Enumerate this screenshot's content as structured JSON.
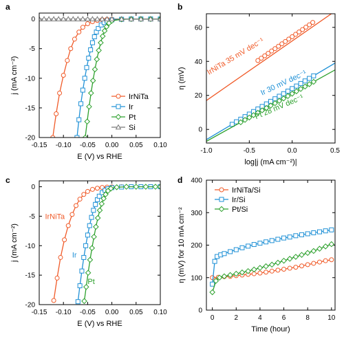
{
  "colors": {
    "irnita": "#f05a28",
    "ir": "#1e90d6",
    "pt": "#2ca02c",
    "si": "#777777",
    "axis": "#000000"
  },
  "chart_data": [
    {
      "id": "a",
      "panel_label": "a",
      "type": "line",
      "xlabel": "E (V) vs RHE",
      "ylabel": "j (mA cm⁻²)",
      "xlim": [
        -0.15,
        0.1
      ],
      "ylim": [
        -20,
        1
      ],
      "xticks": [
        -0.15,
        -0.1,
        -0.05,
        0.0,
        0.05,
        0.1
      ],
      "yticks": [
        0,
        -5,
        -10,
        -15,
        -20
      ],
      "xtick_labels": [
        "-0.15",
        "-0.10",
        "-0.05",
        "0.00",
        "0.05",
        "0.10"
      ],
      "ytick_labels": [
        "0",
        "-5",
        "-10",
        "-15",
        "-20"
      ],
      "legend": "bottom-right",
      "series": [
        {
          "name": "IrNiTa",
          "color_key": "irnita",
          "marker": "circle",
          "x": [
            -0.122,
            -0.115,
            -0.108,
            -0.1,
            -0.092,
            -0.085,
            -0.077,
            -0.068,
            -0.06,
            -0.05,
            -0.04,
            -0.03,
            -0.02,
            -0.01,
            0.0,
            0.02,
            0.04,
            0.06,
            0.08,
            0.1
          ],
          "y": [
            -20.0,
            -16.0,
            -12.5,
            -9.5,
            -7.0,
            -5.0,
            -3.4,
            -2.2,
            -1.4,
            -0.8,
            -0.45,
            -0.25,
            -0.12,
            -0.06,
            -0.03,
            -0.01,
            0.0,
            0.0,
            0.0,
            0.0
          ]
        },
        {
          "name": "Ir",
          "color_key": "ir",
          "marker": "square",
          "x": [
            -0.072,
            -0.068,
            -0.064,
            -0.06,
            -0.056,
            -0.052,
            -0.048,
            -0.044,
            -0.04,
            -0.036,
            -0.032,
            -0.028,
            -0.022,
            -0.016,
            -0.01,
            0.0,
            0.02,
            0.04,
            0.06,
            0.08,
            0.1
          ],
          "y": [
            -20.0,
            -17.0,
            -14.3,
            -12.0,
            -10.0,
            -8.2,
            -6.6,
            -5.2,
            -4.0,
            -3.0,
            -2.2,
            -1.6,
            -1.0,
            -0.6,
            -0.35,
            -0.15,
            -0.05,
            0.0,
            0.0,
            0.0,
            0.0
          ]
        },
        {
          "name": "Pt",
          "color_key": "pt",
          "marker": "diamond",
          "x": [
            -0.055,
            -0.051,
            -0.047,
            -0.043,
            -0.039,
            -0.035,
            -0.031,
            -0.027,
            -0.023,
            -0.019,
            -0.015,
            -0.011,
            -0.006,
            0.0,
            0.02,
            0.04,
            0.06,
            0.08,
            0.1
          ],
          "y": [
            -20.0,
            -17.3,
            -14.8,
            -12.5,
            -10.4,
            -8.5,
            -6.8,
            -5.3,
            -4.0,
            -2.9,
            -2.0,
            -1.3,
            -0.7,
            -0.3,
            -0.05,
            0.0,
            0.0,
            0.0,
            0.0
          ]
        },
        {
          "name": "Si",
          "color_key": "si",
          "marker": "triangle",
          "x": [
            -0.15,
            -0.14,
            -0.13,
            -0.12,
            -0.11,
            -0.1,
            -0.09,
            -0.08,
            -0.07,
            -0.06,
            -0.05,
            -0.04,
            -0.03,
            -0.02,
            -0.01,
            0.0,
            0.02,
            0.04,
            0.06,
            0.08,
            0.1
          ],
          "y": [
            0,
            0,
            0,
            0,
            0,
            0,
            0,
            0,
            0,
            0,
            0,
            0,
            0,
            0,
            0,
            0,
            0,
            0,
            0,
            0,
            0
          ]
        }
      ]
    },
    {
      "id": "b",
      "panel_label": "b",
      "type": "scatter",
      "xlabel": "log|j (mA cm⁻²)|",
      "ylabel": "η (mV)",
      "xlim": [
        -1.0,
        0.5
      ],
      "ylim": [
        -8,
        68
      ],
      "xticks": [
        -1.0,
        -0.5,
        0.0,
        0.5
      ],
      "yticks": [
        0,
        20,
        40,
        60
      ],
      "xtick_labels": [
        "-1.0",
        "-0.5",
        "0.0",
        "0.5"
      ],
      "ytick_labels": [
        "0",
        "20",
        "40",
        "60"
      ],
      "annotations": [
        {
          "text": "IrNiTa   35 mV dec⁻¹",
          "color_key": "irnita",
          "x": -0.97,
          "y": 32,
          "rotate": -31
        },
        {
          "text": "Ir   30 mV dec⁻¹",
          "color_key": "ir",
          "x": -0.35,
          "y": 20,
          "rotate": -25
        },
        {
          "text": "Pt   28 mV dec⁻¹",
          "color_key": "pt",
          "x": -0.42,
          "y": 6,
          "rotate": -23
        }
      ],
      "series": [
        {
          "name": "IrNiTa",
          "color_key": "irnita",
          "marker": "circle",
          "x": [
            -0.4,
            -0.36,
            -0.32,
            -0.28,
            -0.24,
            -0.2,
            -0.16,
            -0.12,
            -0.08,
            -0.04,
            0.0,
            0.04,
            0.08,
            0.12,
            0.16,
            0.2,
            0.24
          ],
          "y": [
            40.5,
            41.9,
            43.3,
            44.7,
            46.1,
            47.5,
            48.9,
            50.3,
            51.7,
            53.1,
            54.5,
            55.9,
            57.3,
            58.7,
            60.1,
            61.5,
            62.9
          ],
          "fit": {
            "x": [
              -1.0,
              0.5
            ],
            "y": [
              17.0,
              69.5
            ]
          }
        },
        {
          "name": "Ir",
          "color_key": "ir",
          "marker": "square",
          "x": [
            -0.7,
            -0.65,
            -0.6,
            -0.55,
            -0.5,
            -0.45,
            -0.4,
            -0.35,
            -0.3,
            -0.25,
            -0.2,
            -0.15,
            -0.1,
            -0.05,
            0.0,
            0.05,
            0.1,
            0.15,
            0.2,
            0.25
          ],
          "y": [
            3.0,
            4.5,
            6.0,
            7.5,
            9.0,
            10.5,
            12.0,
            13.5,
            15.0,
            16.5,
            18.0,
            19.5,
            21.0,
            22.5,
            24.0,
            25.5,
            27.0,
            28.5,
            30.0,
            31.5
          ],
          "fit": {
            "x": [
              -1.0,
              0.5
            ],
            "y": [
              -6.0,
              39.0
            ]
          }
        },
        {
          "name": "Pt",
          "color_key": "pt",
          "marker": "diamond",
          "x": [
            -0.6,
            -0.55,
            -0.5,
            -0.45,
            -0.4,
            -0.35,
            -0.3,
            -0.25,
            -0.2,
            -0.15,
            -0.1,
            -0.05,
            0.0,
            0.05,
            0.1,
            0.15,
            0.2,
            0.25
          ],
          "y": [
            4.2,
            5.6,
            7.0,
            8.4,
            9.8,
            11.2,
            12.6,
            14.0,
            15.4,
            16.8,
            18.2,
            19.6,
            21.0,
            22.4,
            23.8,
            25.2,
            26.6,
            28.0
          ],
          "fit": {
            "x": [
              -1.0,
              0.5
            ],
            "y": [
              -7.0,
              35.0
            ]
          }
        }
      ]
    },
    {
      "id": "c",
      "panel_label": "c",
      "type": "line",
      "xlabel": "E (V) vs RHE",
      "ylabel": "j (mA cm⁻²)",
      "xlim": [
        -0.15,
        0.1
      ],
      "ylim": [
        -20,
        1
      ],
      "xticks": [
        -0.15,
        -0.1,
        -0.05,
        0.0,
        0.05,
        0.1
      ],
      "yticks": [
        0,
        -5,
        -10,
        -15,
        -20
      ],
      "xtick_labels": [
        "-0.15",
        "-0.10",
        "-0.05",
        "0.00",
        "0.05",
        "0.10"
      ],
      "ytick_labels": [
        "0",
        "-5",
        "-10",
        "-15",
        "-20"
      ],
      "annotations": [
        {
          "text": "IrNiTa",
          "color_key": "irnita",
          "x": -0.138,
          "y": -5.5
        },
        {
          "text": "Ir",
          "color_key": "ir",
          "x": -0.082,
          "y": -12.0
        },
        {
          "text": "Pt",
          "color_key": "pt",
          "x": -0.05,
          "y": -16.5
        }
      ],
      "series": [
        {
          "name": "IrNiTa",
          "color_key": "irnita",
          "marker": "circle",
          "x": [
            -0.12,
            -0.113,
            -0.106,
            -0.098,
            -0.09,
            -0.082,
            -0.074,
            -0.066,
            -0.058,
            -0.05,
            -0.04,
            -0.03,
            -0.02,
            -0.01,
            0.0,
            0.02,
            0.04,
            0.06,
            0.08,
            0.1
          ],
          "y": [
            -19.3,
            -15.5,
            -12.0,
            -9.0,
            -6.6,
            -4.7,
            -3.2,
            -2.1,
            -1.3,
            -0.8,
            -0.45,
            -0.25,
            -0.12,
            -0.06,
            -0.03,
            -0.01,
            0.0,
            0.0,
            0.0,
            0.0
          ]
        },
        {
          "name": "Ir",
          "color_key": "ir",
          "marker": "square",
          "x": [
            -0.07,
            -0.066,
            -0.062,
            -0.058,
            -0.054,
            -0.05,
            -0.046,
            -0.042,
            -0.038,
            -0.034,
            -0.03,
            -0.026,
            -0.02,
            -0.014,
            -0.008,
            0.0,
            0.02,
            0.04,
            0.06,
            0.08,
            0.1
          ],
          "y": [
            -19.5,
            -16.8,
            -14.3,
            -12.0,
            -10.0,
            -8.2,
            -6.6,
            -5.2,
            -4.0,
            -3.0,
            -2.2,
            -1.6,
            -1.0,
            -0.6,
            -0.35,
            -0.15,
            -0.05,
            0.0,
            0.0,
            0.0,
            0.0
          ]
        },
        {
          "name": "Pt",
          "color_key": "pt",
          "marker": "diamond",
          "x": [
            -0.057,
            -0.053,
            -0.049,
            -0.045,
            -0.041,
            -0.037,
            -0.033,
            -0.029,
            -0.025,
            -0.021,
            -0.017,
            -0.013,
            -0.008,
            -0.002,
            0.01,
            0.03,
            0.05,
            0.07,
            0.09,
            0.1
          ],
          "y": [
            -19.4,
            -17.0,
            -14.6,
            -12.4,
            -10.4,
            -8.5,
            -6.8,
            -5.3,
            -4.0,
            -2.9,
            -2.0,
            -1.3,
            -0.7,
            -0.3,
            -0.08,
            0.0,
            0.0,
            0.0,
            0.0,
            0.0
          ]
        }
      ]
    },
    {
      "id": "d",
      "panel_label": "d",
      "type": "line",
      "xlabel": "Time (hour)",
      "ylabel": "η (mV) for 10 mA cm⁻²",
      "xlim": [
        -0.5,
        10.3
      ],
      "ylim": [
        0,
        400
      ],
      "xticks": [
        0,
        2,
        4,
        6,
        8,
        10
      ],
      "yticks": [
        0,
        100,
        200,
        300,
        400
      ],
      "xtick_labels": [
        "0",
        "2",
        "4",
        "6",
        "8",
        "10"
      ],
      "ytick_labels": [
        "0",
        "100",
        "200",
        "300",
        "400"
      ],
      "legend": "top-left",
      "series": [
        {
          "name": "IrNiTa/Si",
          "color_key": "irnita",
          "marker": "circle",
          "x": [
            0.0,
            0.5,
            1.0,
            1.5,
            2.0,
            2.5,
            3.0,
            3.5,
            4.0,
            4.5,
            5.0,
            5.5,
            6.0,
            6.5,
            7.0,
            7.5,
            8.0,
            8.5,
            9.0,
            9.5,
            10.0
          ],
          "y": [
            100,
            101,
            103,
            104,
            106,
            108,
            110,
            112,
            114,
            117,
            120,
            123,
            126,
            129,
            132,
            136,
            140,
            144,
            148,
            152,
            155
          ]
        },
        {
          "name": "Ir/Si",
          "color_key": "ir",
          "marker": "square",
          "x": [
            0.0,
            0.2,
            0.4,
            0.7,
            1.0,
            1.5,
            2.0,
            2.5,
            3.0,
            3.5,
            4.0,
            4.5,
            5.0,
            5.5,
            6.0,
            6.5,
            7.0,
            7.5,
            8.0,
            8.5,
            9.0,
            9.5,
            10.0
          ],
          "y": [
            80,
            150,
            165,
            170,
            174,
            180,
            186,
            192,
            197,
            202,
            206,
            210,
            214,
            218,
            222,
            225,
            229,
            232,
            235,
            238,
            241,
            244,
            247
          ]
        },
        {
          "name": "Pt/Si",
          "color_key": "pt",
          "marker": "diamond",
          "x": [
            0.0,
            0.3,
            0.6,
            1.0,
            1.5,
            2.0,
            2.5,
            3.0,
            3.5,
            4.0,
            4.5,
            5.0,
            5.5,
            6.0,
            6.5,
            7.0,
            7.5,
            8.0,
            8.5,
            9.0,
            9.5,
            10.0
          ],
          "y": [
            55,
            90,
            100,
            104,
            108,
            112,
            116,
            120,
            125,
            130,
            135,
            140,
            146,
            152,
            158,
            164,
            170,
            176,
            182,
            189,
            196,
            203
          ]
        }
      ]
    }
  ]
}
